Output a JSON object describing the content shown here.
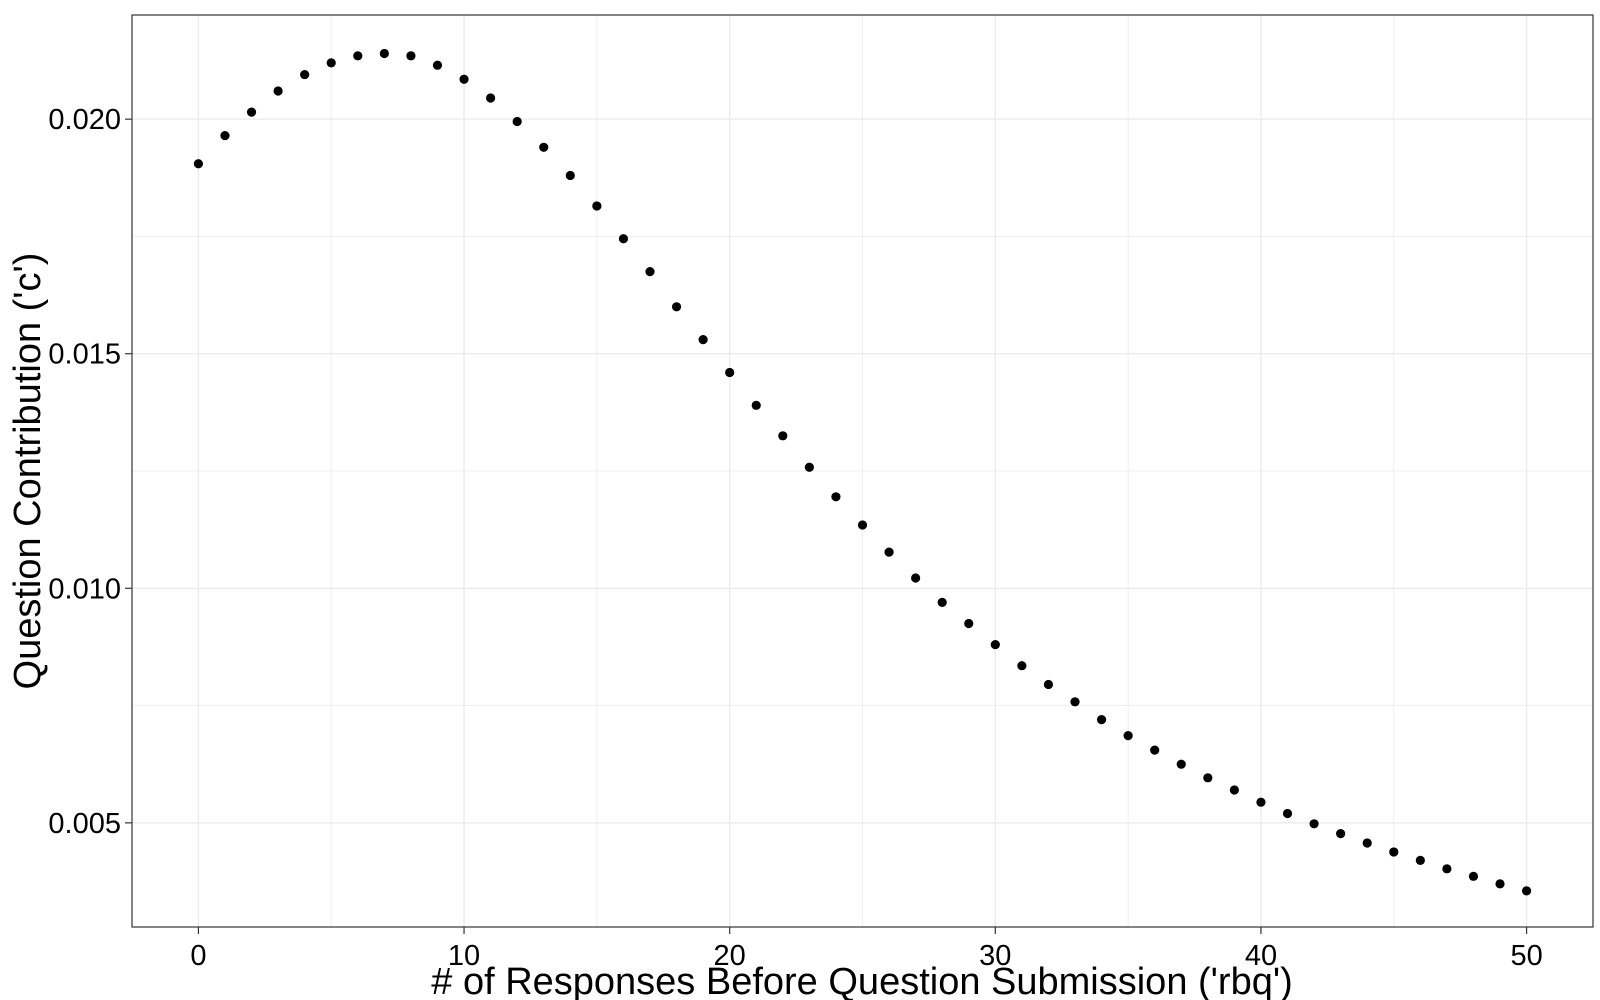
{
  "chart_data": {
    "type": "scatter",
    "title": "",
    "xlabel": "# of Responses Before Question Submission ('rbq')",
    "ylabel": "Question Contribution ('c')",
    "xlim": [
      -2.5,
      52.5
    ],
    "ylim": [
      0.00278,
      0.02222
    ],
    "x_ticks": [
      0,
      10,
      20,
      30,
      40,
      50
    ],
    "x_tick_labels": [
      "0",
      "10",
      "20",
      "30",
      "40",
      "50"
    ],
    "y_ticks": [
      0.005,
      0.01,
      0.015,
      0.02
    ],
    "y_tick_labels": [
      "0.005",
      "0.010",
      "0.015",
      "0.020"
    ],
    "grid": true,
    "legend": "none",
    "colors": {
      "point": "#000000",
      "grid": "#ebebeb",
      "panel_border": "#333333",
      "background": "#ffffff"
    },
    "series": [
      {
        "x": [
          0,
          1,
          2,
          3,
          4,
          5,
          6,
          7,
          8,
          9,
          10,
          11,
          12,
          13,
          14,
          15,
          16,
          17,
          18,
          19,
          20,
          21,
          22,
          23,
          24,
          25,
          26,
          27,
          28,
          29,
          30,
          31,
          32,
          33,
          34,
          35,
          36,
          37,
          38,
          39,
          40,
          41,
          42,
          43,
          44,
          45,
          46,
          47,
          48,
          49,
          50
        ],
        "y": [
          0.01905,
          0.01965,
          0.02015,
          0.0206,
          0.02095,
          0.0212,
          0.02135,
          0.0214,
          0.02135,
          0.02115,
          0.02085,
          0.02045,
          0.01995,
          0.0194,
          0.0188,
          0.01815,
          0.01745,
          0.01675,
          0.016,
          0.0153,
          0.0146,
          0.0139,
          0.01325,
          0.01258,
          0.01195,
          0.01135,
          0.01077,
          0.01022,
          0.0097,
          0.00925,
          0.0088,
          0.00835,
          0.00795,
          0.00758,
          0.0072,
          0.00686,
          0.00655,
          0.00625,
          0.00596,
          0.0057,
          0.00544,
          0.0052,
          0.00498,
          0.00477,
          0.00457,
          0.00438,
          0.0042,
          0.00402,
          0.00386,
          0.0037,
          0.00355
        ]
      }
    ]
  }
}
